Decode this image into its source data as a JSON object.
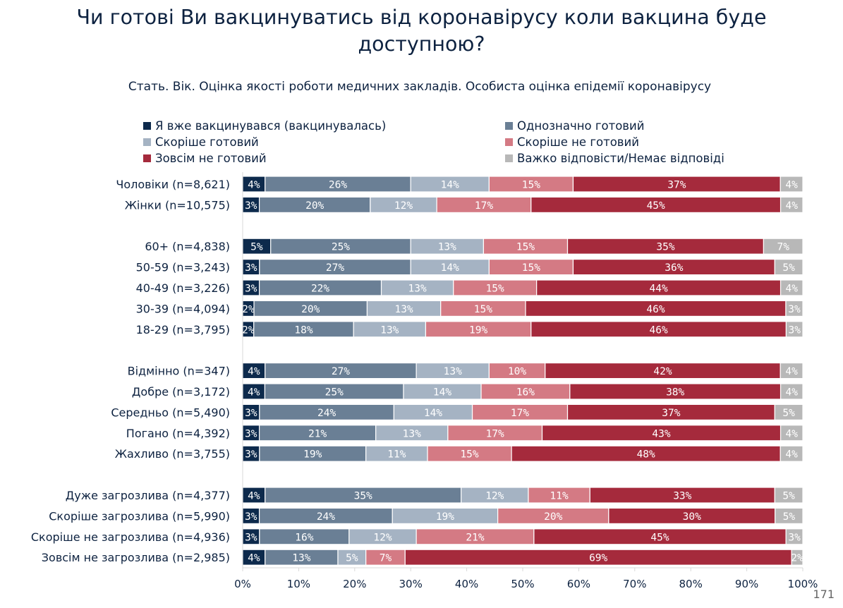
{
  "chart_data": {
    "type": "bar",
    "orientation": "horizontal",
    "stacked": true,
    "title": "Чи готові Ви вакцинуватись від коронавірусу коли вакцина буде доступною?",
    "subtitle": "Стать. Вік. Оцінка якості роботи медичних закладів. Особиста оцінка епідемії коронавірусу",
    "legend_position": "top",
    "xlim": [
      0,
      100
    ],
    "xticks": [
      "0%",
      "10%",
      "20%",
      "30%",
      "40%",
      "50%",
      "60%",
      "70%",
      "80%",
      "90%",
      "100%"
    ],
    "series": [
      {
        "name": "Я вже вакцинувався (вакцинувалась)",
        "color": "#0d2a4c",
        "text_color": "#ffffff"
      },
      {
        "name": "Однозначно готовий",
        "color": "#6a7f95",
        "text_color": "#ffffff"
      },
      {
        "name": "Скоріше готовий",
        "color": "#a5b3c3",
        "text_color": "#ffffff"
      },
      {
        "name": "Скоріше не готовий",
        "color": "#d47a84",
        "text_color": "#ffffff"
      },
      {
        "name": "Зовсім не готовий",
        "color": "#a52a3c",
        "text_color": "#ffffff"
      },
      {
        "name": "Важко відповісти/Немає відповіді",
        "color": "#b8b8b8",
        "text_color": "#ffffff"
      }
    ],
    "groups": [
      {
        "rows": [
          {
            "label": "Чоловіки (n=8,621)",
            "values": [
              4,
              26,
              14,
              15,
              37,
              4
            ]
          },
          {
            "label": "Жінки (n=10,575)",
            "values": [
              3,
              20,
              12,
              17,
              45,
              4
            ]
          }
        ]
      },
      {
        "rows": [
          {
            "label": "60+ (n=4,838)",
            "values": [
              5,
              25,
              13,
              15,
              35,
              7
            ]
          },
          {
            "label": "50-59 (n=3,243)",
            "values": [
              3,
              27,
              14,
              15,
              36,
              5
            ]
          },
          {
            "label": "40-49 (n=3,226)",
            "values": [
              3,
              22,
              13,
              15,
              44,
              4
            ]
          },
          {
            "label": "30-39 (n=4,094)",
            "values": [
              2,
              20,
              13,
              15,
              46,
              3
            ]
          },
          {
            "label": "18-29 (n=3,795)",
            "values": [
              2,
              18,
              13,
              19,
              46,
              3
            ]
          }
        ]
      },
      {
        "rows": [
          {
            "label": "Відмінно (n=347)",
            "values": [
              4,
              27,
              13,
              10,
              42,
              4
            ]
          },
          {
            "label": "Добре (n=3,172)",
            "values": [
              4,
              25,
              14,
              16,
              38,
              4
            ]
          },
          {
            "label": "Середньо (n=5,490)",
            "values": [
              3,
              24,
              14,
              17,
              37,
              5
            ]
          },
          {
            "label": "Погано (n=4,392)",
            "values": [
              3,
              21,
              13,
              17,
              43,
              4
            ]
          },
          {
            "label": "Жахливо (n=3,755)",
            "values": [
              3,
              19,
              11,
              15,
              48,
              4
            ]
          }
        ]
      },
      {
        "rows": [
          {
            "label": "Дуже загрозлива (n=4,377)",
            "values": [
              4,
              35,
              12,
              11,
              33,
              5
            ]
          },
          {
            "label": "Скоріше загрозлива (n=5,990)",
            "values": [
              3,
              24,
              19,
              20,
              30,
              5
            ]
          },
          {
            "label": "Скоріше не загрозлива (n=4,936)",
            "values": [
              3,
              16,
              12,
              21,
              45,
              3
            ]
          },
          {
            "label": "Зовсім не загрозлива (n=2,985)",
            "values": [
              4,
              13,
              5,
              7,
              69,
              2
            ]
          }
        ]
      }
    ]
  },
  "page_number": "171"
}
